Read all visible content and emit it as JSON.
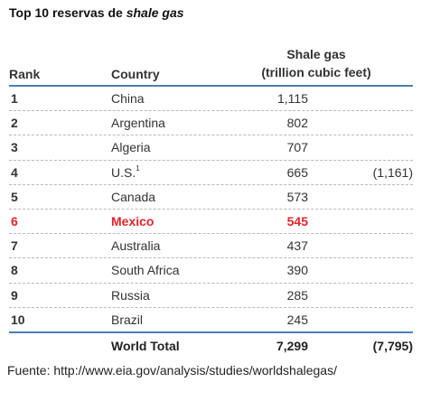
{
  "title": {
    "prefix": "Top 10 reservas de ",
    "emphasis": "shale gas"
  },
  "table": {
    "headers": {
      "rank": "Rank",
      "country": "Country",
      "value_line1": "Shale gas",
      "value_line2": "(trillion cubic feet)"
    },
    "rows": [
      {
        "rank": "1",
        "country": "China",
        "sup": "",
        "value": "1,115",
        "note": ""
      },
      {
        "rank": "2",
        "country": "Argentina",
        "sup": "",
        "value": "802",
        "note": ""
      },
      {
        "rank": "3",
        "country": "Algeria",
        "sup": "",
        "value": "707",
        "note": ""
      },
      {
        "rank": "4",
        "country": "U.S.",
        "sup": "1",
        "value": "665",
        "note": "(1,161)"
      },
      {
        "rank": "5",
        "country": "Canada",
        "sup": "",
        "value": "573",
        "note": ""
      },
      {
        "rank": "6",
        "country": "Mexico",
        "sup": "",
        "value": "545",
        "note": ""
      },
      {
        "rank": "7",
        "country": "Australia",
        "sup": "",
        "value": "437",
        "note": ""
      },
      {
        "rank": "8",
        "country": "South Africa",
        "sup": "",
        "value": "390",
        "note": ""
      },
      {
        "rank": "9",
        "country": "Russia",
        "sup": "",
        "value": "285",
        "note": ""
      },
      {
        "rank": "10",
        "country": "Brazil",
        "sup": "",
        "value": "245",
        "note": ""
      }
    ],
    "total": {
      "label": "World Total",
      "value": "7,299",
      "note": "(7,795)"
    }
  },
  "source": "Fuente: http://www.eia.gov/analysis/studies/worldshalegas/",
  "colors": {
    "highlight": "#e8232a",
    "rule": "#4a7fb5"
  }
}
